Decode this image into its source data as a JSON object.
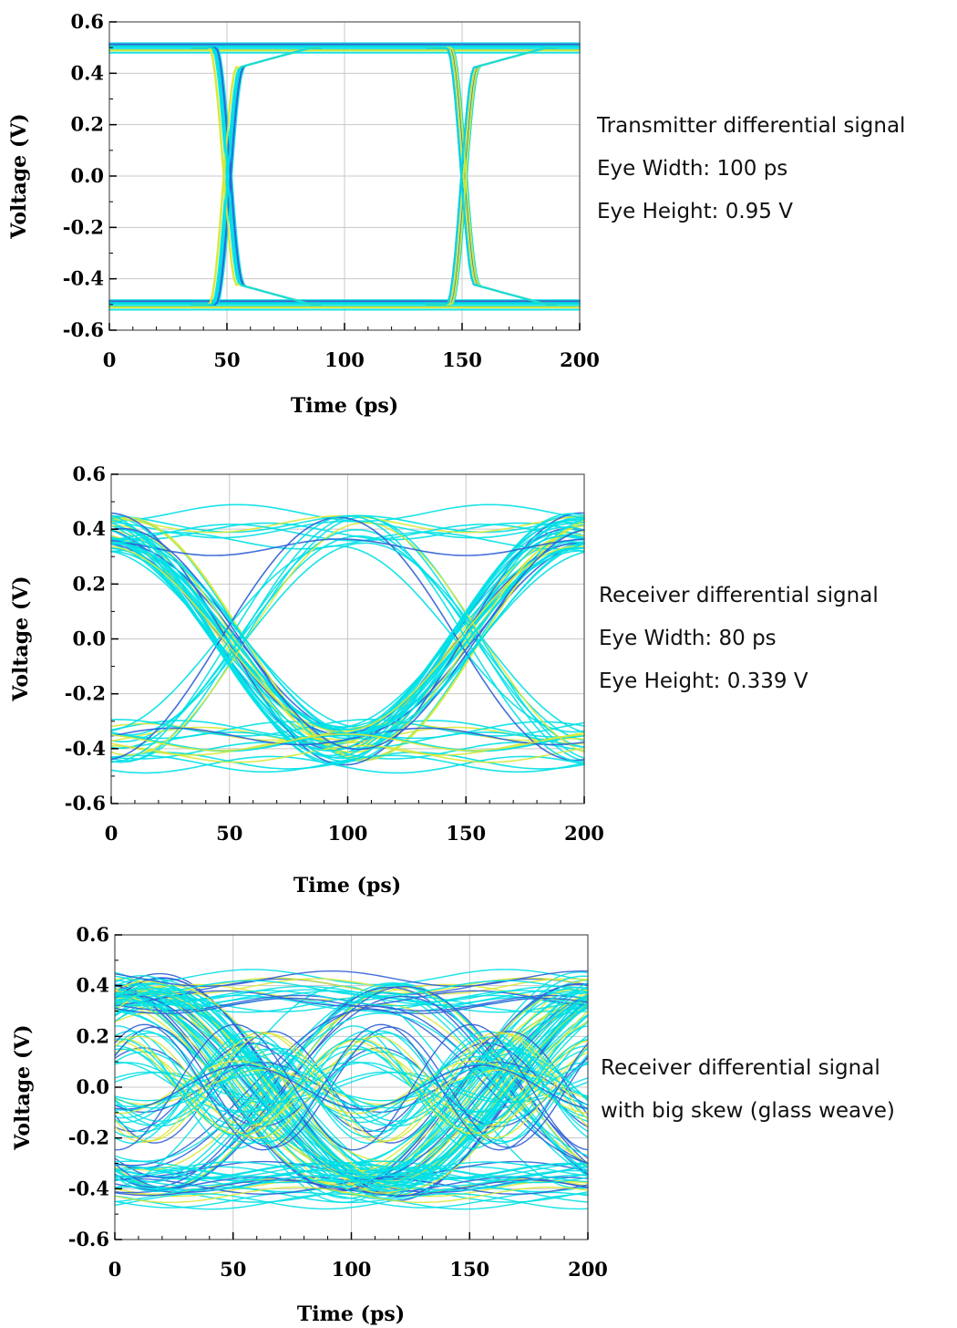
{
  "colors": {
    "trace_primary": "#00e0e6",
    "trace_dense": "#2f5fd6",
    "trace_hot": "#d8e83a",
    "grid": "#c8c8c8",
    "frame": "#555555"
  },
  "chart_data": [
    {
      "type": "line",
      "subtype": "eye-diagram",
      "xlabel": "Time (ps)",
      "ylabel": "Voltage (V)",
      "xlim": [
        0,
        200
      ],
      "ylim": [
        -0.6,
        0.6
      ],
      "xticks": [
        "0",
        "50",
        "100",
        "150",
        "200"
      ],
      "yticks": [
        "0.6",
        "0.4",
        "0.2",
        "0.0",
        "-0.2",
        "-0.4",
        "-0.6"
      ],
      "grid": true,
      "levels": {
        "high": 0.5,
        "low": -0.5
      },
      "crossings": [
        50,
        150
      ],
      "eye_width_ps": 100,
      "eye_height_v": 0.95,
      "annotations": [
        "Transmitter differential signal",
        "Eye Width: 100 ps",
        "Eye Height: 0.95 V"
      ]
    },
    {
      "type": "line",
      "subtype": "eye-diagram",
      "xlabel": "Time (ps)",
      "ylabel": "Voltage (V)",
      "xlim": [
        0,
        200
      ],
      "ylim": [
        -0.6,
        0.6
      ],
      "xticks": [
        "0",
        "50",
        "100",
        "150",
        "200"
      ],
      "yticks": [
        "0.6",
        "0.4",
        "0.2",
        "0.0",
        "-0.2",
        "-0.4",
        "-0.6"
      ],
      "grid": true,
      "levels": {
        "high": 0.4,
        "low": -0.4
      },
      "crossings": [
        50,
        150
      ],
      "eye_width_ps": 80,
      "eye_height_v": 0.339,
      "annotations": [
        "Receiver differential signal",
        "Eye Width: 80 ps",
        "Eye Height: 0.339 V"
      ]
    },
    {
      "type": "line",
      "subtype": "eye-diagram",
      "xlabel": "Time (ps)",
      "ylabel": "Voltage (V)",
      "xlim": [
        0,
        200
      ],
      "ylim": [
        -0.6,
        0.6
      ],
      "xticks": [
        "0",
        "50",
        "100",
        "150",
        "200"
      ],
      "yticks": [
        "0.6",
        "0.4",
        "0.2",
        "0.0",
        "-0.2",
        "-0.4",
        "-0.6"
      ],
      "grid": true,
      "levels": {
        "high": 0.4,
        "low": -0.4
      },
      "crossings": [
        60,
        160
      ],
      "annotations": [
        "Receiver differential signal",
        "with big skew (glass weave)"
      ]
    }
  ]
}
